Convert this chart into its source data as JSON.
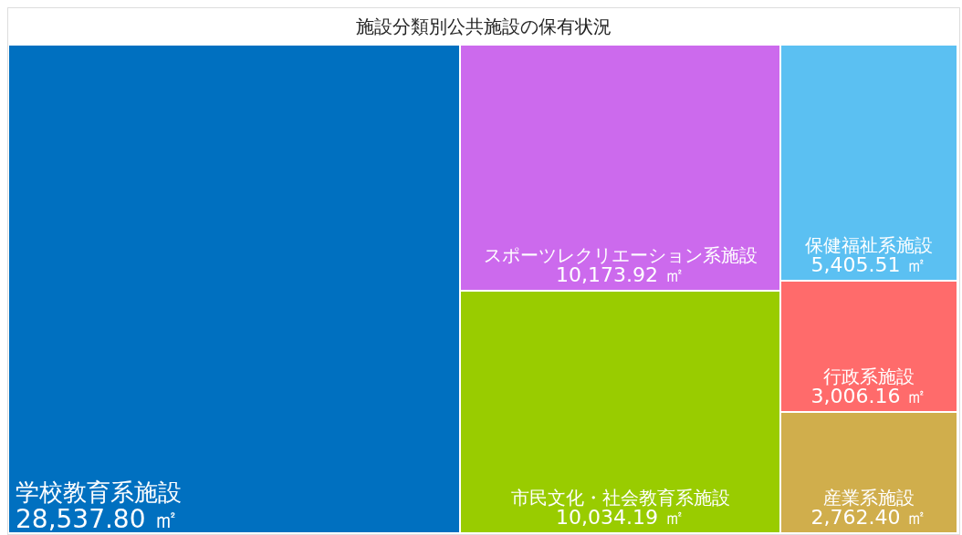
{
  "chart_data": {
    "type": "other",
    "title": "施設分類別公共施設の保有状況",
    "categories": [
      "学校教育系施設",
      "スポーツレクリエーション系施設",
      "市民文化・社会教育系施設",
      "保健福祉系施設",
      "行政系施設",
      "産業系施設"
    ],
    "values": [
      28537.8,
      10173.92,
      10034.19,
      5405.51,
      3006.16,
      2762.4
    ],
    "value_labels": [
      "28,537.80 ㎡",
      "10,173.92 ㎡",
      "10,034.19 ㎡",
      "5,405.51 ㎡",
      "3,006.16 ㎡",
      "2,762.40 ㎡"
    ],
    "colors": [
      "#0070c0",
      "#cc6aed",
      "#99cc00",
      "#5bc0f2",
      "#ff6b6b",
      "#d0ae4c"
    ]
  }
}
